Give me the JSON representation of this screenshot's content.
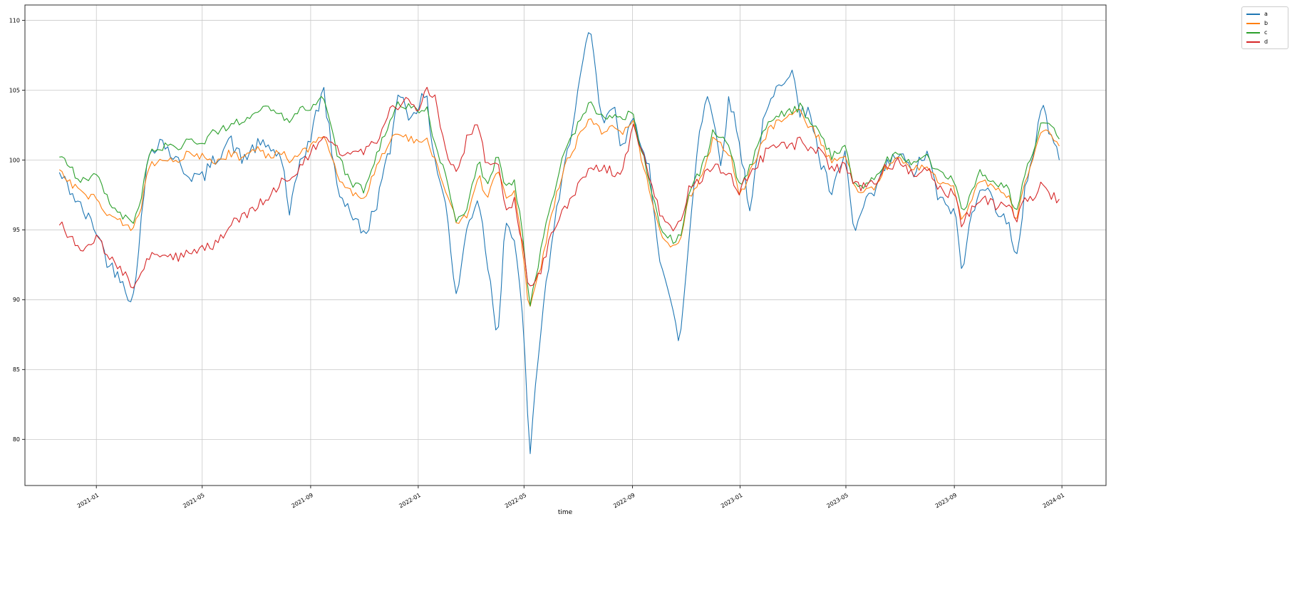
{
  "chart_data": {
    "type": "line",
    "title": "",
    "xlabel": "time",
    "ylabel": "",
    "grid": true,
    "x_axis": {
      "lim": [
        "2020-10-12",
        "2024-02-20"
      ],
      "ticks": [
        {
          "value": "2021-01-01",
          "label": "2021-01"
        },
        {
          "value": "2021-05-01",
          "label": "2021-05"
        },
        {
          "value": "2021-09-01",
          "label": "2021-09"
        },
        {
          "value": "2022-01-01",
          "label": "2022-01"
        },
        {
          "value": "2022-05-01",
          "label": "2022-05"
        },
        {
          "value": "2022-09-01",
          "label": "2022-09"
        },
        {
          "value": "2023-01-01",
          "label": "2023-01"
        },
        {
          "value": "2023-05-01",
          "label": "2023-05"
        },
        {
          "value": "2023-09-01",
          "label": "2023-09"
        },
        {
          "value": "2024-01-01",
          "label": "2024-01"
        }
      ]
    },
    "y_axis": {
      "lim": [
        76.7,
        111.1
      ],
      "ticks": [
        80,
        85,
        90,
        95,
        100,
        105,
        110
      ]
    },
    "legend": {
      "location": "upper-right-outside",
      "entries": [
        "a",
        "b",
        "c",
        "d"
      ]
    },
    "x": [
      "2020-11-20",
      "2020-12-01",
      "2020-12-15",
      "2021-01-01",
      "2021-01-15",
      "2021-02-01",
      "2021-02-10",
      "2021-02-20",
      "2021-03-01",
      "2021-03-15",
      "2021-04-01",
      "2021-04-15",
      "2021-05-01",
      "2021-05-15",
      "2021-06-01",
      "2021-06-15",
      "2021-07-01",
      "2021-07-15",
      "2021-08-01",
      "2021-08-07",
      "2021-08-20",
      "2021-09-01",
      "2021-09-15",
      "2021-10-01",
      "2021-10-15",
      "2021-11-01",
      "2021-11-15",
      "2021-12-01",
      "2021-12-10",
      "2021-12-20",
      "2022-01-01",
      "2022-01-10",
      "2022-01-20",
      "2022-02-01",
      "2022-02-13",
      "2022-02-25",
      "2022-03-10",
      "2022-03-20",
      "2022-04-01",
      "2022-04-10",
      "2022-04-20",
      "2022-05-01",
      "2022-05-07",
      "2022-05-20",
      "2022-06-01",
      "2022-06-15",
      "2022-07-01",
      "2022-07-15",
      "2022-07-25",
      "2022-08-01",
      "2022-08-10",
      "2022-08-20",
      "2022-09-01",
      "2022-09-10",
      "2022-09-20",
      "2022-10-01",
      "2022-10-10",
      "2022-10-20",
      "2022-10-25",
      "2022-11-05",
      "2022-11-15",
      "2022-11-25",
      "2022-12-01",
      "2022-12-10",
      "2022-12-20",
      "2023-01-01",
      "2023-01-12",
      "2023-01-25",
      "2023-02-01",
      "2023-02-15",
      "2023-03-01",
      "2023-03-10",
      "2023-03-20",
      "2023-04-01",
      "2023-04-15",
      "2023-05-01",
      "2023-05-10",
      "2023-05-20",
      "2023-06-01",
      "2023-06-15",
      "2023-07-01",
      "2023-07-15",
      "2023-08-01",
      "2023-08-15",
      "2023-09-01",
      "2023-09-10",
      "2023-09-20",
      "2023-10-01",
      "2023-10-15",
      "2023-11-01",
      "2023-11-10",
      "2023-11-20",
      "2023-12-01",
      "2023-12-10",
      "2023-12-20",
      "2023-12-29"
    ],
    "series": [
      {
        "name": "a",
        "color": "#1f77b4",
        "noise": 0.55,
        "values": [
          99.0,
          98.0,
          96.5,
          95.0,
          92.5,
          91.5,
          89.3,
          95.0,
          100.5,
          101.5,
          100.0,
          99.0,
          98.7,
          100.0,
          101.5,
          100.0,
          101.0,
          101.0,
          100.0,
          95.5,
          100.0,
          101.5,
          105.3,
          98.0,
          96.5,
          94.5,
          97.0,
          101.0,
          105.5,
          103.0,
          104.0,
          104.5,
          100.0,
          97.0,
          90.0,
          95.0,
          97.5,
          93.0,
          87.3,
          96.0,
          94.0,
          88.0,
          78.2,
          88.0,
          94.0,
          99.0,
          105.0,
          109.4,
          104.0,
          102.5,
          104.0,
          100.5,
          103.8,
          100.5,
          99.5,
          93.5,
          91.0,
          88.0,
          87.0,
          95.0,
          102.0,
          104.8,
          103.0,
          100.0,
          104.5,
          101.0,
          96.5,
          102.0,
          103.5,
          105.5,
          106.7,
          103.0,
          104.0,
          100.0,
          97.5,
          100.5,
          94.5,
          96.5,
          97.5,
          99.5,
          100.5,
          99.0,
          100.5,
          97.0,
          96.5,
          91.8,
          96.0,
          98.5,
          97.0,
          95.5,
          92.3,
          98.0,
          101.0,
          104.2,
          101.5,
          100.0
        ]
      },
      {
        "name": "b",
        "color": "#ff7f0e",
        "noise": 0.3,
        "values": [
          99.3,
          98.5,
          97.5,
          97.3,
          96.0,
          95.5,
          95.2,
          96.5,
          99.5,
          100.0,
          99.8,
          100.5,
          100.3,
          99.8,
          100.5,
          100.2,
          100.8,
          100.3,
          100.5,
          100.0,
          100.4,
          100.8,
          102.0,
          99.0,
          97.8,
          97.2,
          99.5,
          101.5,
          102.0,
          101.5,
          101.3,
          101.5,
          100.0,
          98.0,
          95.6,
          96.0,
          99.0,
          97.0,
          99.3,
          97.5,
          97.8,
          93.0,
          89.0,
          92.5,
          96.0,
          99.5,
          101.5,
          102.8,
          102.2,
          102.0,
          102.4,
          102.0,
          102.8,
          100.5,
          98.0,
          95.0,
          94.2,
          93.8,
          94.0,
          97.5,
          98.5,
          100.0,
          101.5,
          101.0,
          100.5,
          97.5,
          99.0,
          101.0,
          102.0,
          103.0,
          103.2,
          103.4,
          102.5,
          101.5,
          99.8,
          100.5,
          98.0,
          97.8,
          98.0,
          99.5,
          100.0,
          99.3,
          99.8,
          98.5,
          98.0,
          95.8,
          97.0,
          98.8,
          98.0,
          97.5,
          95.5,
          98.5,
          100.5,
          102.3,
          101.8,
          101.0
        ]
      },
      {
        "name": "c",
        "color": "#2ca02c",
        "noise": 0.3,
        "values": [
          100.2,
          99.5,
          98.5,
          99.0,
          97.0,
          96.0,
          95.3,
          97.0,
          100.5,
          101.0,
          100.8,
          101.5,
          101.3,
          102.0,
          102.5,
          102.8,
          103.5,
          103.8,
          103.0,
          102.8,
          103.5,
          103.8,
          104.5,
          100.5,
          98.5,
          97.8,
          100.5,
          103.0,
          104.2,
          103.8,
          103.5,
          103.8,
          101.0,
          99.0,
          95.8,
          96.5,
          100.0,
          98.0,
          100.3,
          98.0,
          98.5,
          94.0,
          89.5,
          93.5,
          97.0,
          100.5,
          102.5,
          104.0,
          103.3,
          103.0,
          103.3,
          103.0,
          103.5,
          101.0,
          98.5,
          95.5,
          94.6,
          94.2,
          94.5,
          98.0,
          99.0,
          100.5,
          102.0,
          101.5,
          101.0,
          98.0,
          99.5,
          101.5,
          102.5,
          103.2,
          103.5,
          103.8,
          102.8,
          102.0,
          100.3,
          100.8,
          98.3,
          98.2,
          98.5,
          100.0,
          100.5,
          99.8,
          100.2,
          99.0,
          98.5,
          96.3,
          97.5,
          99.2,
          98.5,
          98.0,
          96.0,
          99.0,
          101.0,
          102.8,
          102.3,
          101.5
        ]
      },
      {
        "name": "d",
        "color": "#d62728",
        "noise": 0.4,
        "values": [
          95.7,
          94.3,
          93.8,
          94.5,
          93.0,
          92.0,
          90.5,
          92.0,
          93.3,
          92.8,
          93.0,
          93.5,
          93.8,
          94.0,
          95.3,
          96.0,
          96.5,
          97.5,
          98.5,
          98.8,
          99.3,
          100.5,
          102.0,
          100.8,
          100.3,
          100.5,
          101.5,
          103.5,
          104.0,
          104.3,
          103.8,
          105.0,
          104.5,
          100.5,
          99.0,
          101.5,
          102.5,
          99.5,
          99.8,
          96.8,
          97.0,
          93.5,
          90.7,
          92.0,
          94.5,
          96.5,
          98.0,
          99.8,
          99.5,
          99.5,
          99.2,
          99.0,
          102.5,
          101.0,
          99.0,
          96.5,
          95.5,
          95.0,
          95.5,
          98.0,
          98.5,
          99.0,
          99.5,
          99.3,
          99.0,
          97.8,
          99.0,
          100.0,
          100.8,
          101.2,
          101.0,
          101.3,
          100.8,
          100.5,
          99.3,
          99.5,
          98.2,
          98.0,
          98.3,
          99.5,
          99.8,
          99.0,
          99.3,
          98.0,
          97.5,
          95.3,
          96.5,
          97.3,
          96.8,
          96.5,
          95.8,
          97.0,
          97.5,
          98.2,
          97.5,
          97.2
        ]
      }
    ],
    "style": {
      "noise_seed": 42,
      "noise_amplitude": 0.4,
      "sample_days": 3,
      "line_width": 1.1
    }
  }
}
